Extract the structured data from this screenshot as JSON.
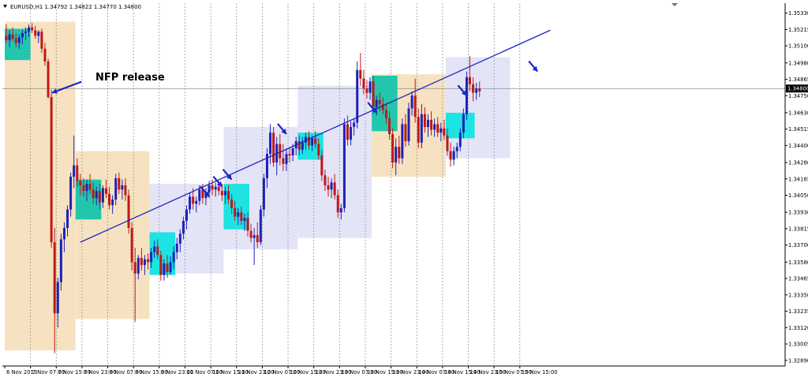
{
  "header": {
    "symbol_line": "EURUSD,H1  1.34792 1.34822 1.34770 1.34800"
  },
  "annotation": {
    "nfp_label": "NFP release"
  },
  "colors": {
    "background": "#ffffff",
    "grid": "#9a9a9a",
    "bull_candle": "#1c22b8",
    "bear_candle": "#c01818",
    "trendline": "#1b24c4",
    "arrow": "#1b24c4",
    "zone_orange": "#f6e2c0",
    "zone_lavender": "#e4e4f7",
    "box_teal": "#22c6ad",
    "box_cyan": "#1ee3e3",
    "price_tag_bg": "#000000",
    "price_tag_text": "#ffffff",
    "axis_text": "#000000"
  },
  "chart_data": {
    "type": "candlestick",
    "symbol": "EURUSD",
    "timeframe": "H1",
    "ohlc_header": {
      "open": 1.34792,
      "high": 1.34822,
      "low": 1.3477,
      "close": 1.348
    },
    "current_price": "1.34800",
    "grid": true,
    "ylim": [
      1.3285,
      1.354
    ],
    "yticks": [
      "1.35330",
      "1.35215",
      "1.35100",
      "1.34980",
      "1.34865",
      "1.34750",
      "1.34630",
      "1.34515",
      "1.34400",
      "1.34280",
      "1.34165",
      "1.34050",
      "1.33930",
      "1.33815",
      "1.33700",
      "1.33580",
      "1.33465",
      "1.33350",
      "1.33235",
      "1.33120",
      "1.33005",
      "1.32890"
    ],
    "xticks": [
      "6 Nov 2013",
      "7 Nov 07:00",
      "7 Nov 15:00",
      "7 Nov 23:00",
      "8 Nov 07:00",
      "8 Nov 15:00",
      "8 Nov 23:00",
      "11 Nov 07:00",
      "11 Nov 15:00",
      "11 Nov 23:00",
      "12 Nov 07:00",
      "12 Nov 15:00",
      "12 Nov 23:00",
      "13 Nov 07:00",
      "13 Nov 15:00",
      "13 Nov 23:00",
      "14 Nov 07:00",
      "14 Nov 15:00",
      "14 Nov 23:00",
      "15 Nov 07:00",
      "15 Nov 15:00"
    ],
    "bars_per_tick": 8,
    "candles": [
      {
        "o": 1.3517,
        "h": 1.3525,
        "l": 1.3512,
        "c": 1.3514
      },
      {
        "o": 1.3514,
        "h": 1.3521,
        "l": 1.3509,
        "c": 1.3518
      },
      {
        "o": 1.3518,
        "h": 1.3523,
        "l": 1.3513,
        "c": 1.3515
      },
      {
        "o": 1.3515,
        "h": 1.3519,
        "l": 1.3509,
        "c": 1.3512
      },
      {
        "o": 1.3512,
        "h": 1.3518,
        "l": 1.3508,
        "c": 1.3516
      },
      {
        "o": 1.3516,
        "h": 1.3521,
        "l": 1.3511,
        "c": 1.3519
      },
      {
        "o": 1.3519,
        "h": 1.3523,
        "l": 1.3514,
        "c": 1.352
      },
      {
        "o": 1.352,
        "h": 1.3525,
        "l": 1.3516,
        "c": 1.3523
      },
      {
        "o": 1.3523,
        "h": 1.3526,
        "l": 1.3519,
        "c": 1.3521
      },
      {
        "o": 1.3521,
        "h": 1.3524,
        "l": 1.3515,
        "c": 1.3517
      },
      {
        "o": 1.3517,
        "h": 1.3521,
        "l": 1.3512,
        "c": 1.352
      },
      {
        "o": 1.352,
        "h": 1.3522,
        "l": 1.3505,
        "c": 1.3508
      },
      {
        "o": 1.3508,
        "h": 1.3512,
        "l": 1.3496,
        "c": 1.3499
      },
      {
        "o": 1.3499,
        "h": 1.3501,
        "l": 1.3473,
        "c": 1.3474
      },
      {
        "o": 1.3474,
        "h": 1.3479,
        "l": 1.3368,
        "c": 1.3372
      },
      {
        "o": 1.3372,
        "h": 1.3382,
        "l": 1.3294,
        "c": 1.3322
      },
      {
        "o": 1.3322,
        "h": 1.3347,
        "l": 1.3312,
        "c": 1.3344
      },
      {
        "o": 1.3344,
        "h": 1.3378,
        "l": 1.3338,
        "c": 1.3374
      },
      {
        "o": 1.3374,
        "h": 1.3386,
        "l": 1.3365,
        "c": 1.3382
      },
      {
        "o": 1.3382,
        "h": 1.3398,
        "l": 1.3376,
        "c": 1.3395
      },
      {
        "o": 1.3395,
        "h": 1.3421,
        "l": 1.339,
        "c": 1.3418
      },
      {
        "o": 1.3418,
        "h": 1.3447,
        "l": 1.341,
        "c": 1.3426
      },
      {
        "o": 1.3426,
        "h": 1.3431,
        "l": 1.3411,
        "c": 1.3415
      },
      {
        "o": 1.3415,
        "h": 1.342,
        "l": 1.3405,
        "c": 1.3412
      },
      {
        "o": 1.3412,
        "h": 1.3417,
        "l": 1.3404,
        "c": 1.3408
      },
      {
        "o": 1.3408,
        "h": 1.3416,
        "l": 1.3401,
        "c": 1.3413
      },
      {
        "o": 1.3413,
        "h": 1.342,
        "l": 1.3406,
        "c": 1.3409
      },
      {
        "o": 1.3409,
        "h": 1.3414,
        "l": 1.3399,
        "c": 1.3403
      },
      {
        "o": 1.3403,
        "h": 1.3411,
        "l": 1.3398,
        "c": 1.3408
      },
      {
        "o": 1.3408,
        "h": 1.3413,
        "l": 1.3395,
        "c": 1.34
      },
      {
        "o": 1.34,
        "h": 1.3412,
        "l": 1.3396,
        "c": 1.341
      },
      {
        "o": 1.341,
        "h": 1.3416,
        "l": 1.3403,
        "c": 1.3406
      },
      {
        "o": 1.3406,
        "h": 1.3411,
        "l": 1.3395,
        "c": 1.3398
      },
      {
        "o": 1.3398,
        "h": 1.3405,
        "l": 1.3392,
        "c": 1.3402
      },
      {
        "o": 1.3402,
        "h": 1.342,
        "l": 1.3398,
        "c": 1.3417
      },
      {
        "o": 1.3417,
        "h": 1.3421,
        "l": 1.3406,
        "c": 1.3409
      },
      {
        "o": 1.3409,
        "h": 1.3416,
        "l": 1.3402,
        "c": 1.3412
      },
      {
        "o": 1.3412,
        "h": 1.3417,
        "l": 1.3401,
        "c": 1.3405
      },
      {
        "o": 1.3405,
        "h": 1.3409,
        "l": 1.3378,
        "c": 1.3382
      },
      {
        "o": 1.3382,
        "h": 1.3386,
        "l": 1.3352,
        "c": 1.3358
      },
      {
        "o": 1.3358,
        "h": 1.3368,
        "l": 1.3316,
        "c": 1.335
      },
      {
        "o": 1.335,
        "h": 1.3363,
        "l": 1.3346,
        "c": 1.3361
      },
      {
        "o": 1.3361,
        "h": 1.3368,
        "l": 1.3352,
        "c": 1.3356
      },
      {
        "o": 1.3356,
        "h": 1.3363,
        "l": 1.3349,
        "c": 1.336
      },
      {
        "o": 1.336,
        "h": 1.3364,
        "l": 1.3353,
        "c": 1.3358
      },
      {
        "o": 1.3358,
        "h": 1.3368,
        "l": 1.3354,
        "c": 1.3365
      },
      {
        "o": 1.3365,
        "h": 1.3373,
        "l": 1.3361,
        "c": 1.3369
      },
      {
        "o": 1.3369,
        "h": 1.3374,
        "l": 1.336,
        "c": 1.3363
      },
      {
        "o": 1.3363,
        "h": 1.3366,
        "l": 1.3345,
        "c": 1.3349
      },
      {
        "o": 1.3349,
        "h": 1.336,
        "l": 1.3345,
        "c": 1.3357
      },
      {
        "o": 1.3357,
        "h": 1.3363,
        "l": 1.3347,
        "c": 1.3351
      },
      {
        "o": 1.3351,
        "h": 1.3362,
        "l": 1.3349,
        "c": 1.3358
      },
      {
        "o": 1.3358,
        "h": 1.3369,
        "l": 1.3353,
        "c": 1.3365
      },
      {
        "o": 1.3365,
        "h": 1.3375,
        "l": 1.336,
        "c": 1.3371
      },
      {
        "o": 1.3371,
        "h": 1.3381,
        "l": 1.3365,
        "c": 1.3378
      },
      {
        "o": 1.3378,
        "h": 1.339,
        "l": 1.3374,
        "c": 1.3387
      },
      {
        "o": 1.3387,
        "h": 1.3398,
        "l": 1.3381,
        "c": 1.3395
      },
      {
        "o": 1.3395,
        "h": 1.3407,
        "l": 1.3392,
        "c": 1.3404
      },
      {
        "o": 1.3404,
        "h": 1.341,
        "l": 1.3395,
        "c": 1.3399
      },
      {
        "o": 1.3399,
        "h": 1.3404,
        "l": 1.3393,
        "c": 1.3401
      },
      {
        "o": 1.3401,
        "h": 1.3412,
        "l": 1.3398,
        "c": 1.3409
      },
      {
        "o": 1.3409,
        "h": 1.3413,
        "l": 1.3399,
        "c": 1.3403
      },
      {
        "o": 1.3403,
        "h": 1.341,
        "l": 1.3398,
        "c": 1.3407
      },
      {
        "o": 1.3407,
        "h": 1.3415,
        "l": 1.3403,
        "c": 1.3412
      },
      {
        "o": 1.3412,
        "h": 1.3416,
        "l": 1.3405,
        "c": 1.3409
      },
      {
        "o": 1.3409,
        "h": 1.3414,
        "l": 1.3404,
        "c": 1.3411
      },
      {
        "o": 1.3411,
        "h": 1.3415,
        "l": 1.3405,
        "c": 1.3408
      },
      {
        "o": 1.3408,
        "h": 1.3413,
        "l": 1.3401,
        "c": 1.3405
      },
      {
        "o": 1.3405,
        "h": 1.3411,
        "l": 1.3399,
        "c": 1.3408
      },
      {
        "o": 1.3408,
        "h": 1.3412,
        "l": 1.3399,
        "c": 1.3402
      },
      {
        "o": 1.3402,
        "h": 1.3406,
        "l": 1.3392,
        "c": 1.3396
      },
      {
        "o": 1.3396,
        "h": 1.3401,
        "l": 1.3387,
        "c": 1.339
      },
      {
        "o": 1.339,
        "h": 1.3396,
        "l": 1.3384,
        "c": 1.3393
      },
      {
        "o": 1.3393,
        "h": 1.3397,
        "l": 1.3384,
        "c": 1.3387
      },
      {
        "o": 1.3387,
        "h": 1.3392,
        "l": 1.338,
        "c": 1.3389
      },
      {
        "o": 1.3389,
        "h": 1.3393,
        "l": 1.3376,
        "c": 1.338
      },
      {
        "o": 1.338,
        "h": 1.3385,
        "l": 1.3372,
        "c": 1.3375
      },
      {
        "o": 1.3375,
        "h": 1.3382,
        "l": 1.3356,
        "c": 1.3377
      },
      {
        "o": 1.3377,
        "h": 1.3386,
        "l": 1.3368,
        "c": 1.3372
      },
      {
        "o": 1.3372,
        "h": 1.3398,
        "l": 1.337,
        "c": 1.3395
      },
      {
        "o": 1.3395,
        "h": 1.342,
        "l": 1.339,
        "c": 1.3417
      },
      {
        "o": 1.3417,
        "h": 1.3438,
        "l": 1.341,
        "c": 1.3434
      },
      {
        "o": 1.3434,
        "h": 1.3455,
        "l": 1.3427,
        "c": 1.3449
      },
      {
        "o": 1.3449,
        "h": 1.3453,
        "l": 1.3425,
        "c": 1.3428
      },
      {
        "o": 1.3428,
        "h": 1.3446,
        "l": 1.3419,
        "c": 1.3441
      },
      {
        "o": 1.3441,
        "h": 1.3448,
        "l": 1.3426,
        "c": 1.3431
      },
      {
        "o": 1.3431,
        "h": 1.3441,
        "l": 1.3422,
        "c": 1.3427
      },
      {
        "o": 1.3427,
        "h": 1.3438,
        "l": 1.3422,
        "c": 1.3434
      },
      {
        "o": 1.3434,
        "h": 1.3438,
        "l": 1.3428,
        "c": 1.3433
      },
      {
        "o": 1.3433,
        "h": 1.3441,
        "l": 1.3429,
        "c": 1.3438
      },
      {
        "o": 1.3438,
        "h": 1.3446,
        "l": 1.3433,
        "c": 1.3443
      },
      {
        "o": 1.3443,
        "h": 1.3447,
        "l": 1.3433,
        "c": 1.3437
      },
      {
        "o": 1.3437,
        "h": 1.3446,
        "l": 1.3434,
        "c": 1.3442
      },
      {
        "o": 1.3442,
        "h": 1.3449,
        "l": 1.3437,
        "c": 1.3446
      },
      {
        "o": 1.3446,
        "h": 1.345,
        "l": 1.3437,
        "c": 1.344
      },
      {
        "o": 1.344,
        "h": 1.3447,
        "l": 1.3436,
        "c": 1.3445
      },
      {
        "o": 1.3445,
        "h": 1.345,
        "l": 1.3438,
        "c": 1.3441
      },
      {
        "o": 1.3441,
        "h": 1.3445,
        "l": 1.343,
        "c": 1.3433
      },
      {
        "o": 1.3433,
        "h": 1.3437,
        "l": 1.3415,
        "c": 1.3419
      },
      {
        "o": 1.3419,
        "h": 1.3423,
        "l": 1.3408,
        "c": 1.3412
      },
      {
        "o": 1.3412,
        "h": 1.3418,
        "l": 1.3404,
        "c": 1.3409
      },
      {
        "o": 1.3409,
        "h": 1.3417,
        "l": 1.3403,
        "c": 1.3414
      },
      {
        "o": 1.3414,
        "h": 1.342,
        "l": 1.3402,
        "c": 1.3405
      },
      {
        "o": 1.3405,
        "h": 1.3409,
        "l": 1.3389,
        "c": 1.3393
      },
      {
        "o": 1.3393,
        "h": 1.3399,
        "l": 1.3388,
        "c": 1.3396
      },
      {
        "o": 1.3396,
        "h": 1.3459,
        "l": 1.3393,
        "c": 1.3455
      },
      {
        "o": 1.3455,
        "h": 1.3461,
        "l": 1.344,
        "c": 1.3444
      },
      {
        "o": 1.3444,
        "h": 1.3457,
        "l": 1.344,
        "c": 1.3453
      },
      {
        "o": 1.3453,
        "h": 1.3459,
        "l": 1.3447,
        "c": 1.3456
      },
      {
        "o": 1.3456,
        "h": 1.3499,
        "l": 1.3452,
        "c": 1.3493
      },
      {
        "o": 1.3493,
        "h": 1.3505,
        "l": 1.3482,
        "c": 1.3487
      },
      {
        "o": 1.3487,
        "h": 1.3493,
        "l": 1.3476,
        "c": 1.348
      },
      {
        "o": 1.348,
        "h": 1.3486,
        "l": 1.3473,
        "c": 1.3477
      },
      {
        "o": 1.3477,
        "h": 1.3488,
        "l": 1.3472,
        "c": 1.3485
      },
      {
        "o": 1.3485,
        "h": 1.3489,
        "l": 1.3462,
        "c": 1.3467
      },
      {
        "o": 1.3467,
        "h": 1.3475,
        "l": 1.3461,
        "c": 1.3472
      },
      {
        "o": 1.3472,
        "h": 1.3477,
        "l": 1.3464,
        "c": 1.3469
      },
      {
        "o": 1.3469,
        "h": 1.3474,
        "l": 1.3462,
        "c": 1.3465
      },
      {
        "o": 1.3465,
        "h": 1.347,
        "l": 1.3455,
        "c": 1.3459
      },
      {
        "o": 1.3459,
        "h": 1.3464,
        "l": 1.3444,
        "c": 1.3448
      },
      {
        "o": 1.3448,
        "h": 1.3452,
        "l": 1.3424,
        "c": 1.3428
      },
      {
        "o": 1.3428,
        "h": 1.3445,
        "l": 1.3419,
        "c": 1.3439
      },
      {
        "o": 1.3439,
        "h": 1.3447,
        "l": 1.3427,
        "c": 1.3431
      },
      {
        "o": 1.3431,
        "h": 1.3459,
        "l": 1.3427,
        "c": 1.3455
      },
      {
        "o": 1.3455,
        "h": 1.3462,
        "l": 1.3439,
        "c": 1.3443
      },
      {
        "o": 1.3443,
        "h": 1.347,
        "l": 1.344,
        "c": 1.3466
      },
      {
        "o": 1.3466,
        "h": 1.3478,
        "l": 1.3461,
        "c": 1.3475
      },
      {
        "o": 1.3475,
        "h": 1.3487,
        "l": 1.3456,
        "c": 1.346
      },
      {
        "o": 1.346,
        "h": 1.3466,
        "l": 1.3438,
        "c": 1.3442
      },
      {
        "o": 1.3442,
        "h": 1.3469,
        "l": 1.3438,
        "c": 1.3462
      },
      {
        "o": 1.3462,
        "h": 1.3467,
        "l": 1.3449,
        "c": 1.3453
      },
      {
        "o": 1.3453,
        "h": 1.3462,
        "l": 1.3446,
        "c": 1.3458
      },
      {
        "o": 1.3458,
        "h": 1.3464,
        "l": 1.3447,
        "c": 1.3451
      },
      {
        "o": 1.3451,
        "h": 1.3459,
        "l": 1.3446,
        "c": 1.3455
      },
      {
        "o": 1.3455,
        "h": 1.346,
        "l": 1.3446,
        "c": 1.3449
      },
      {
        "o": 1.3449,
        "h": 1.3456,
        "l": 1.3443,
        "c": 1.3452
      },
      {
        "o": 1.3452,
        "h": 1.3458,
        "l": 1.3444,
        "c": 1.3447
      },
      {
        "o": 1.3447,
        "h": 1.3452,
        "l": 1.3433,
        "c": 1.3436
      },
      {
        "o": 1.3436,
        "h": 1.3442,
        "l": 1.3425,
        "c": 1.343
      },
      {
        "o": 1.343,
        "h": 1.3439,
        "l": 1.3426,
        "c": 1.3436
      },
      {
        "o": 1.3436,
        "h": 1.3442,
        "l": 1.3431,
        "c": 1.3439
      },
      {
        "o": 1.3439,
        "h": 1.3452,
        "l": 1.3436,
        "c": 1.3449
      },
      {
        "o": 1.3449,
        "h": 1.3466,
        "l": 1.3445,
        "c": 1.3462
      },
      {
        "o": 1.3462,
        "h": 1.3492,
        "l": 1.3458,
        "c": 1.3488
      },
      {
        "o": 1.3488,
        "h": 1.3503,
        "l": 1.3478,
        "c": 1.3483
      },
      {
        "o": 1.3483,
        "h": 1.3488,
        "l": 1.3471,
        "c": 1.3477
      },
      {
        "o": 1.3477,
        "h": 1.3484,
        "l": 1.3472,
        "c": 1.348
      },
      {
        "o": 1.348,
        "h": 1.3485,
        "l": 1.3474,
        "c": 1.3478
      }
    ],
    "trendline": {
      "from": {
        "bar": 23,
        "price": 1.3372
      },
      "to": {
        "bar": 169,
        "price": 1.3521
      }
    },
    "nfp_arrow": {
      "bar": 14,
      "price": 1.3477
    },
    "signal_arrows": [
      {
        "bar": 63,
        "price": 1.3404
      },
      {
        "bar": 67,
        "price": 1.3411
      },
      {
        "bar": 70,
        "price": 1.3416
      },
      {
        "bar": 87,
        "price": 1.3448
      },
      {
        "bar": 115,
        "price": 1.3463
      },
      {
        "bar": 143,
        "price": 1.3475
      },
      {
        "bar": 165,
        "price": 1.3492
      }
    ],
    "zones": [
      {
        "style": "orange",
        "from_bar": 0,
        "to_bar": 21,
        "high": 1.3527,
        "low": 1.3296
      },
      {
        "style": "orange",
        "from_bar": 22,
        "to_bar": 44,
        "high": 1.3436,
        "low": 1.3318
      },
      {
        "style": "lavender",
        "from_bar": 45,
        "to_bar": 67,
        "high": 1.3413,
        "low": 1.335
      },
      {
        "style": "lavender",
        "from_bar": 68,
        "to_bar": 90,
        "high": 1.3453,
        "low": 1.3367
      },
      {
        "style": "lavender",
        "from_bar": 91,
        "to_bar": 113,
        "high": 1.3482,
        "low": 1.3375
      },
      {
        "style": "orange",
        "from_bar": 114,
        "to_bar": 136,
        "high": 1.349,
        "low": 1.3418
      },
      {
        "style": "lavender",
        "from_bar": 137,
        "to_bar": 156,
        "high": 1.3502,
        "low": 1.3431
      }
    ],
    "boxes": [
      {
        "style": "teal",
        "from_bar": 0,
        "to_bar": 7,
        "high": 1.3522,
        "low": 1.35
      },
      {
        "style": "teal",
        "from_bar": 22,
        "to_bar": 29,
        "high": 1.3416,
        "low": 1.3388
      },
      {
        "style": "cyan",
        "from_bar": 45,
        "to_bar": 52,
        "high": 1.3379,
        "low": 1.3349
      },
      {
        "style": "cyan",
        "from_bar": 68,
        "to_bar": 75,
        "high": 1.3413,
        "low": 1.3381
      },
      {
        "style": "cyan",
        "from_bar": 91,
        "to_bar": 98,
        "high": 1.3449,
        "low": 1.343
      },
      {
        "style": "teal",
        "from_bar": 114,
        "to_bar": 121,
        "high": 1.3489,
        "low": 1.345
      },
      {
        "style": "cyan",
        "from_bar": 137,
        "to_bar": 145,
        "high": 1.3463,
        "low": 1.3445
      }
    ]
  }
}
